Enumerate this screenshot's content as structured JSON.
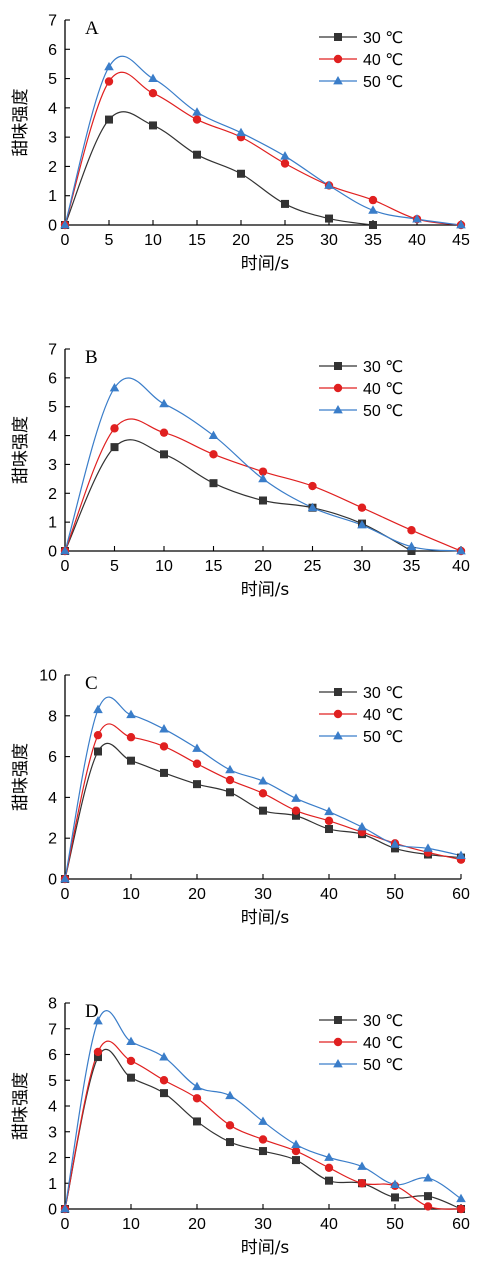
{
  "chart_data": [
    {
      "type": "line",
      "panel": "A",
      "xlabel": "时间/s",
      "ylabel": "甜味强度",
      "xlim": [
        0,
        45
      ],
      "ylim": [
        0,
        7
      ],
      "xticks": [
        0,
        5,
        10,
        15,
        20,
        25,
        30,
        35,
        40,
        45
      ],
      "yticks": [
        0,
        1,
        2,
        3,
        4,
        5,
        6,
        7
      ],
      "legend_position": "top-right",
      "series": [
        {
          "name": "30 ℃",
          "color": "#333333",
          "marker": "square",
          "x": [
            0,
            5,
            10,
            15,
            20,
            25,
            30,
            35
          ],
          "y": [
            0,
            3.6,
            3.4,
            2.4,
            1.75,
            0.72,
            0.22,
            0
          ]
        },
        {
          "name": "40 ℃",
          "color": "#e02020",
          "marker": "circle",
          "x": [
            0,
            5,
            10,
            15,
            20,
            25,
            30,
            35,
            40,
            45
          ],
          "y": [
            0,
            4.9,
            4.5,
            3.6,
            3.0,
            2.1,
            1.35,
            0.85,
            0.2,
            0
          ]
        },
        {
          "name": "50 ℃",
          "color": "#3a7dc9",
          "marker": "triangle",
          "x": [
            0,
            5,
            10,
            15,
            20,
            25,
            30,
            35,
            40,
            45
          ],
          "y": [
            0,
            5.4,
            5.0,
            3.85,
            3.15,
            2.35,
            1.35,
            0.5,
            0.2,
            0
          ]
        }
      ]
    },
    {
      "type": "line",
      "panel": "B",
      "xlabel": "时间/s",
      "ylabel": "甜味强度",
      "xlim": [
        0,
        40
      ],
      "ylim": [
        0,
        7
      ],
      "xticks": [
        0,
        5,
        10,
        15,
        20,
        25,
        30,
        35,
        40
      ],
      "yticks": [
        0,
        1,
        2,
        3,
        4,
        5,
        6,
        7
      ],
      "legend_position": "top-right",
      "series": [
        {
          "name": "30 ℃",
          "color": "#333333",
          "marker": "square",
          "x": [
            0,
            5,
            10,
            15,
            20,
            25,
            30,
            35
          ],
          "y": [
            0,
            3.6,
            3.35,
            2.35,
            1.75,
            1.5,
            0.95,
            0
          ]
        },
        {
          "name": "40 ℃",
          "color": "#e02020",
          "marker": "circle",
          "x": [
            0,
            5,
            10,
            15,
            20,
            25,
            30,
            35,
            40
          ],
          "y": [
            0,
            4.25,
            4.1,
            3.35,
            2.75,
            2.25,
            1.5,
            0.72,
            0
          ]
        },
        {
          "name": "50 ℃",
          "color": "#3a7dc9",
          "marker": "triangle",
          "x": [
            0,
            5,
            10,
            15,
            20,
            25,
            30,
            35,
            40
          ],
          "y": [
            0,
            5.65,
            5.1,
            4.0,
            2.5,
            1.5,
            0.9,
            0.15,
            0
          ]
        }
      ]
    },
    {
      "type": "line",
      "panel": "C",
      "xlabel": "时间/s",
      "ylabel": "甜味强度",
      "xlim": [
        0,
        60
      ],
      "ylim": [
        0,
        10
      ],
      "xticks": [
        0,
        10,
        20,
        30,
        40,
        50,
        60
      ],
      "yticks": [
        0,
        2,
        4,
        6,
        8,
        10
      ],
      "legend_position": "top-right",
      "series": [
        {
          "name": "30 ℃",
          "color": "#333333",
          "marker": "square",
          "x": [
            0,
            5,
            10,
            15,
            20,
            25,
            30,
            35,
            40,
            45,
            50,
            55,
            60
          ],
          "y": [
            0,
            6.25,
            5.8,
            5.2,
            4.65,
            4.25,
            3.35,
            3.1,
            2.45,
            2.2,
            1.5,
            1.2,
            1.05
          ]
        },
        {
          "name": "40 ℃",
          "color": "#e02020",
          "marker": "circle",
          "x": [
            0,
            5,
            10,
            15,
            20,
            25,
            30,
            35,
            40,
            45,
            50,
            55,
            60
          ],
          "y": [
            0,
            7.05,
            6.95,
            6.5,
            5.65,
            4.85,
            4.2,
            3.35,
            2.85,
            2.3,
            1.75,
            1.3,
            0.95
          ]
        },
        {
          "name": "50 ℃",
          "color": "#3a7dc9",
          "marker": "triangle",
          "x": [
            0,
            5,
            10,
            15,
            20,
            25,
            30,
            35,
            40,
            45,
            50,
            55,
            60
          ],
          "y": [
            0,
            8.3,
            8.05,
            7.35,
            6.4,
            5.35,
            4.8,
            3.95,
            3.3,
            2.55,
            1.7,
            1.5,
            1.15
          ]
        }
      ]
    },
    {
      "type": "line",
      "panel": "D",
      "xlabel": "时间/s",
      "ylabel": "甜味强度",
      "xlim": [
        0,
        60
      ],
      "ylim": [
        0,
        8
      ],
      "xticks": [
        0,
        10,
        20,
        30,
        40,
        50,
        60
      ],
      "yticks": [
        0,
        1,
        2,
        3,
        4,
        5,
        6,
        7,
        8
      ],
      "legend_position": "top-right",
      "series": [
        {
          "name": "30 ℃",
          "color": "#333333",
          "marker": "square",
          "x": [
            0,
            5,
            10,
            15,
            20,
            25,
            30,
            35,
            40,
            45,
            50,
            55,
            60
          ],
          "y": [
            0,
            5.9,
            5.1,
            4.5,
            3.4,
            2.6,
            2.25,
            1.9,
            1.1,
            1.0,
            0.45,
            0.5,
            0
          ]
        },
        {
          "name": "40 ℃",
          "color": "#e02020",
          "marker": "circle",
          "x": [
            0,
            5,
            10,
            15,
            20,
            25,
            30,
            35,
            40,
            45,
            50,
            55,
            60
          ],
          "y": [
            0,
            6.1,
            5.75,
            5.0,
            4.3,
            3.25,
            2.7,
            2.25,
            1.6,
            1.0,
            0.9,
            0.1,
            0
          ]
        },
        {
          "name": "50 ℃",
          "color": "#3a7dc9",
          "marker": "triangle",
          "x": [
            0,
            5,
            10,
            15,
            20,
            25,
            30,
            35,
            40,
            45,
            50,
            55,
            60
          ],
          "y": [
            0,
            7.3,
            6.5,
            5.9,
            4.75,
            4.4,
            3.4,
            2.5,
            2.0,
            1.65,
            0.95,
            1.2,
            0.4
          ]
        }
      ]
    }
  ]
}
